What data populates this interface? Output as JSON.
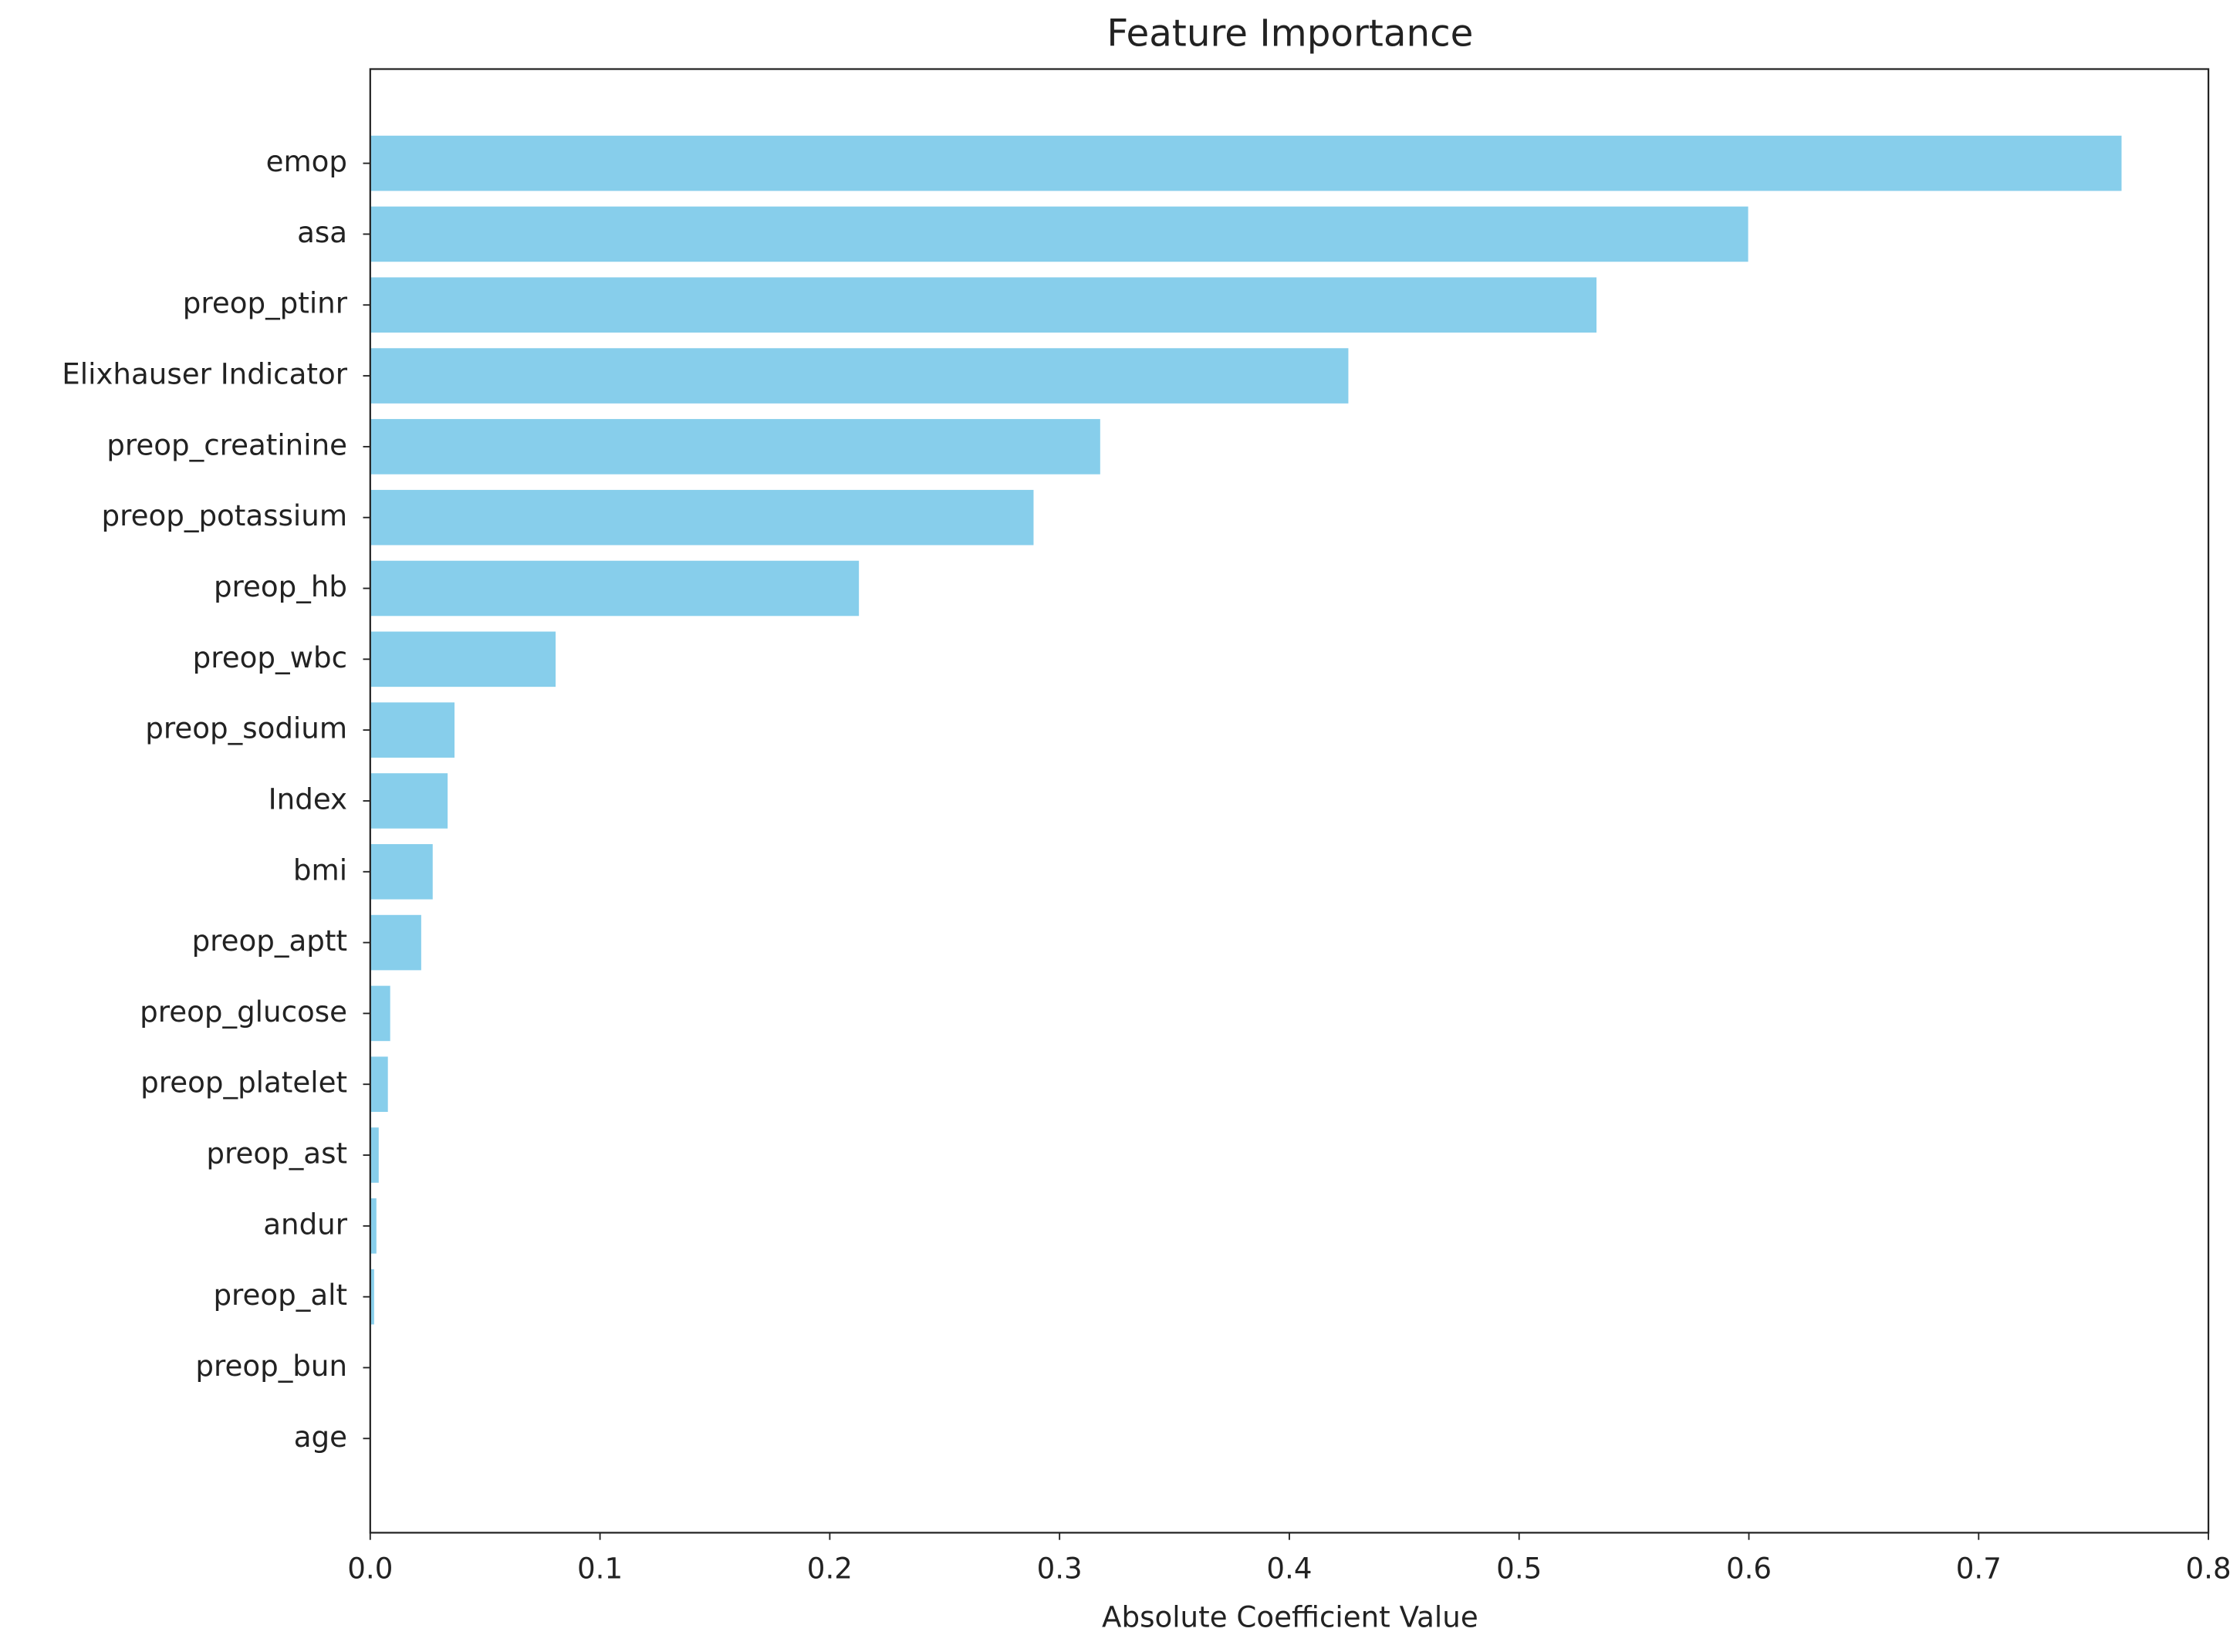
{
  "chart_data": {
    "type": "barh",
    "title": "Feature Importance",
    "xlabel": "Absolute Coefficient Value",
    "categories": [
      "emop",
      "asa",
      "preop_ptinr",
      "Elixhauser Indicator",
      "preop_creatinine",
      "preop_potassium",
      "preop_hb",
      "preop_wbc",
      "preop_sodium",
      "Index",
      "bmi",
      "preop_aptt",
      "preop_glucose",
      "preop_platelet",
      "preop_ast",
      "andur",
      "preop_alt",
      "preop_bun",
      "age"
    ],
    "values": [
      0.7625,
      0.6,
      0.534,
      0.426,
      0.318,
      0.289,
      0.213,
      0.081,
      0.037,
      0.034,
      0.0275,
      0.0225,
      0.009,
      0.008,
      0.004,
      0.003,
      0.002,
      0.0005,
      0.0002
    ],
    "color": "#87ceeb",
    "xlim": [
      0,
      0.8
    ],
    "xticks": [
      {
        "value": 0,
        "label": "0.0"
      },
      0.1,
      0.2,
      0.3,
      0.4,
      0.5,
      0.6,
      0.7,
      0.8
    ]
  }
}
